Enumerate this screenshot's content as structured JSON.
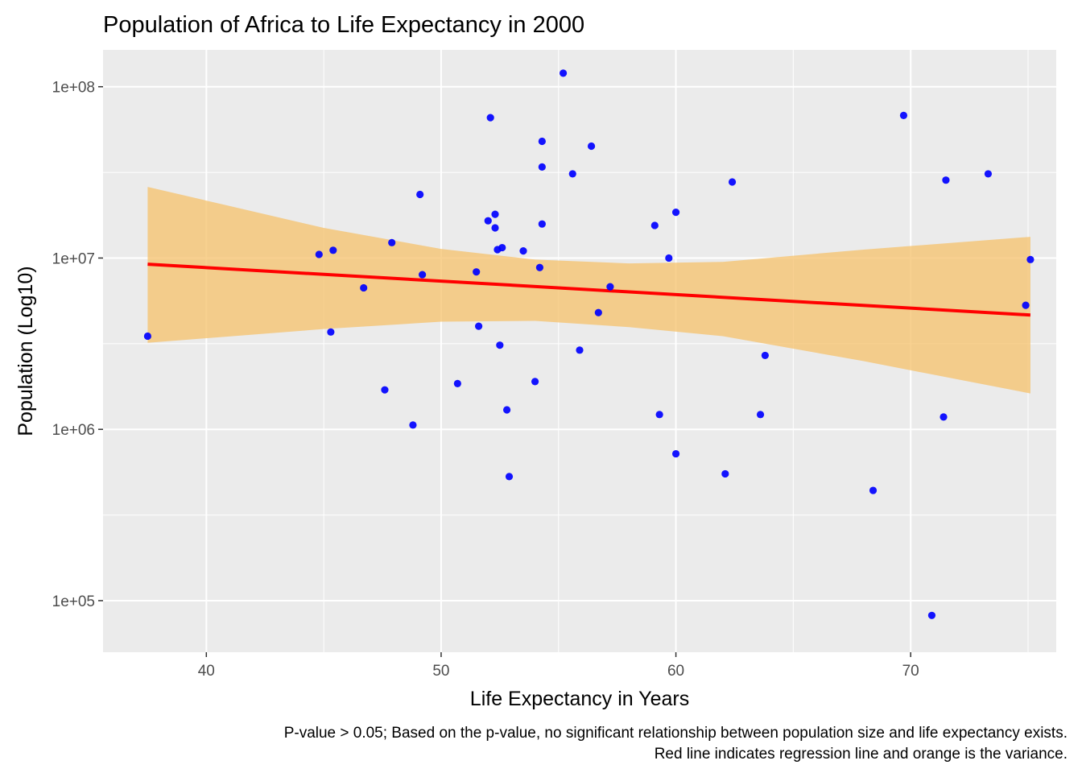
{
  "chart_data": {
    "type": "scatter",
    "title": "Population of Africa to Life Expectancy in 2000",
    "xlabel": "Life Expectancy in Years",
    "ylabel": "Population (Log10)",
    "caption_lines": [
      "P-value > 0.05; Based on the p-value, no significant relationship between population size and life expectancy exists.",
      "Red line indicates regression line and orange is the variance."
    ],
    "x_scale": "linear",
    "y_scale": "log10",
    "xlim": [
      35.6,
      76.2
    ],
    "ylim": [
      50000,
      164000000
    ],
    "x_ticks": [
      40,
      50,
      60,
      70
    ],
    "x_tick_labels": [
      "40",
      "50",
      "60",
      "70"
    ],
    "y_ticks": [
      100000,
      1000000,
      10000000,
      100000000
    ],
    "y_tick_labels": [
      "1e+05",
      "1e+06",
      "1e+07",
      "1e+08"
    ],
    "grid": true,
    "colors": {
      "panel_background": "#ebebeb",
      "grid_major": "#ffffff",
      "points": "#0000ff",
      "regression_line": "#ff0000",
      "confidence_band": "#f5c26b"
    },
    "series": [
      {
        "points": [
          [
            37.5,
            3500000
          ],
          [
            44.8,
            10500000
          ],
          [
            45.3,
            3700000
          ],
          [
            45.4,
            11100000
          ],
          [
            46.7,
            6700000
          ],
          [
            47.6,
            1700000
          ],
          [
            47.9,
            12300000
          ],
          [
            48.8,
            1060000
          ],
          [
            49.1,
            23500000
          ],
          [
            49.2,
            8000000
          ],
          [
            50.7,
            1850000
          ],
          [
            51.5,
            8300000
          ],
          [
            51.6,
            4000000
          ],
          [
            52.0,
            16500000
          ],
          [
            52.1,
            66000000
          ],
          [
            52.3,
            18000000
          ],
          [
            52.3,
            15000000
          ],
          [
            52.4,
            11200000
          ],
          [
            52.5,
            3100000
          ],
          [
            52.6,
            11500000
          ],
          [
            52.8,
            1300000
          ],
          [
            52.9,
            530000
          ],
          [
            53.5,
            11000000
          ],
          [
            54.0,
            1900000
          ],
          [
            54.2,
            8800000
          ],
          [
            54.3,
            48000000
          ],
          [
            54.3,
            34000000
          ],
          [
            54.3,
            15800000
          ],
          [
            55.2,
            120000000
          ],
          [
            55.6,
            31000000
          ],
          [
            55.9,
            2900000
          ],
          [
            56.4,
            45000000
          ],
          [
            56.7,
            4800000
          ],
          [
            57.2,
            6800000
          ],
          [
            59.1,
            15500000
          ],
          [
            59.3,
            1220000
          ],
          [
            59.7,
            10000000
          ],
          [
            60.0,
            18500000
          ],
          [
            60.0,
            720000
          ],
          [
            62.1,
            550000
          ],
          [
            62.4,
            27800000
          ],
          [
            63.6,
            1220000
          ],
          [
            63.8,
            2700000
          ],
          [
            68.4,
            440000
          ],
          [
            69.7,
            68000000
          ],
          [
            70.9,
            82000
          ],
          [
            71.4,
            1180000
          ],
          [
            71.5,
            28500000
          ],
          [
            73.3,
            31000000
          ],
          [
            74.9,
            5300000
          ],
          [
            75.1,
            9800000
          ]
        ]
      }
    ],
    "regression": {
      "x_range": [
        37.5,
        75.1
      ],
      "y_start": 9200000,
      "y_end": 4650000,
      "band": [
        {
          "x": 37.5,
          "lower": 3200000,
          "upper": 26000000
        },
        {
          "x": 45.0,
          "lower": 3850000,
          "upper": 15000000
        },
        {
          "x": 50.0,
          "lower": 4250000,
          "upper": 11300000
        },
        {
          "x": 54.0,
          "lower": 4300000,
          "upper": 9800000
        },
        {
          "x": 58.0,
          "lower": 3950000,
          "upper": 9300000
        },
        {
          "x": 62.0,
          "lower": 3500000,
          "upper": 9500000
        },
        {
          "x": 68.0,
          "lower": 2500000,
          "upper": 11200000
        },
        {
          "x": 75.1,
          "lower": 1620000,
          "upper": 13300000
        }
      ]
    }
  }
}
